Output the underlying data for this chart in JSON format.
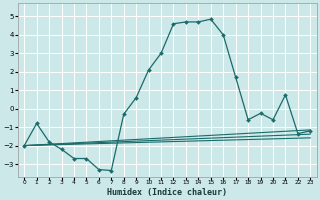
{
  "xlabel": "Humidex (Indice chaleur)",
  "bg_color": "#cce8e8",
  "line_color": "#1a6b6b",
  "grid_color": "#ffffff",
  "xlim": [
    -0.5,
    23.5
  ],
  "ylim": [
    -3.7,
    5.7
  ],
  "xticks": [
    0,
    1,
    2,
    3,
    4,
    5,
    6,
    7,
    8,
    9,
    10,
    11,
    12,
    13,
    14,
    15,
    16,
    17,
    18,
    19,
    20,
    21,
    22,
    23
  ],
  "yticks": [
    -3,
    -2,
    -1,
    0,
    1,
    2,
    3,
    4,
    5
  ],
  "x_main": [
    0,
    1,
    2,
    3,
    4,
    5,
    6,
    7,
    8,
    9,
    10,
    11,
    12,
    13,
    14,
    15,
    16,
    17,
    18,
    19,
    20,
    21,
    22,
    23
  ],
  "y_main": [
    -2.0,
    -0.8,
    -1.8,
    -2.2,
    -2.7,
    -2.7,
    -3.3,
    -3.35,
    -0.3,
    0.6,
    2.1,
    3.0,
    4.6,
    4.7,
    4.7,
    4.85,
    4.0,
    1.7,
    -0.6,
    -0.25,
    -0.6,
    0.75,
    -1.35,
    -1.2
  ],
  "reg_lines": [
    {
      "x": [
        0,
        23
      ],
      "y": [
        -2.0,
        -1.15
      ]
    },
    {
      "x": [
        0,
        23
      ],
      "y": [
        -2.0,
        -1.38
      ]
    },
    {
      "x": [
        0,
        23
      ],
      "y": [
        -2.0,
        -1.58
      ]
    }
  ]
}
